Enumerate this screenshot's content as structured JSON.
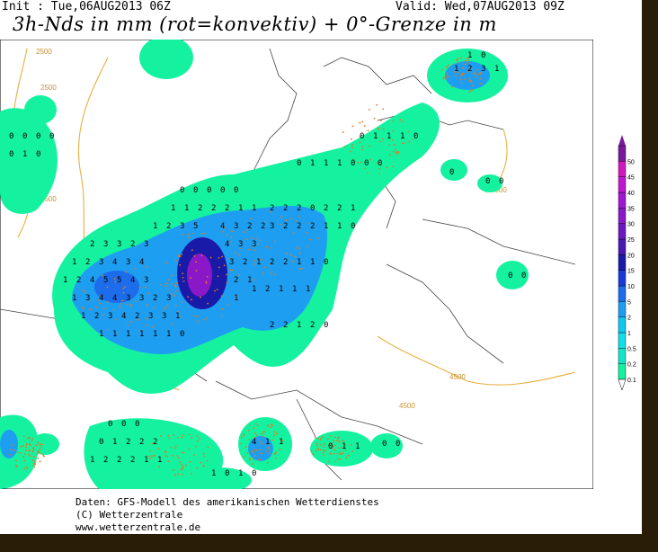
{
  "header": {
    "init": "Init : Tue,06AUG2013 06Z",
    "valid": "Valid: Wed,07AUG2013 09Z",
    "title": "3h-Nds in mm (rot=konvektiv) + 0°-Grenze in m"
  },
  "legend": {
    "levels": [
      "0.1",
      "0.2",
      "0.5",
      "1",
      "2",
      "5",
      "10",
      "15",
      "20",
      "25",
      "30",
      "35",
      "40",
      "45",
      "50"
    ],
    "colors": [
      "#14f2a0",
      "#12e6c8",
      "#10dfe8",
      "#0ec8ee",
      "#1e9ef0",
      "#1c6cec",
      "#1a3ad8",
      "#1a1aa8",
      "#4a18b0",
      "#6a18c0",
      "#8a18c8",
      "#a018d0",
      "#c018d0",
      "#d01ac0",
      "#7a1a9a"
    ]
  },
  "isolines": {
    "labels": [
      "2500",
      "2500",
      "2500",
      "4000",
      "4500",
      "4500"
    ]
  },
  "footer": {
    "line1": "Daten: GFS-Modell des amerikanischen Wetterdienstes",
    "line2": "(C) Wetterzentrale",
    "line3": "www.wetterzentrale.de"
  },
  "colors": {
    "precip_light": "#14f2a0",
    "precip_mid": "#1e9ef0",
    "precip_heavy": "#1a1aa8",
    "precip_peak": "#8a18c8",
    "convective_dots": "#e07a20",
    "freezing_line": "#e8b040",
    "border": "#2a1d08"
  }
}
